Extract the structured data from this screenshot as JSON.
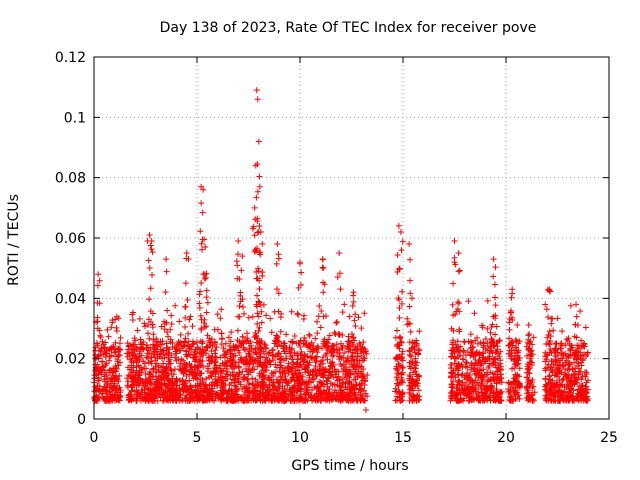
{
  "chart_data": {
    "type": "scatter",
    "title": "Day 138 of 2023, Rate Of TEC Index for receiver pove",
    "xlabel": "GPS time / hours",
    "ylabel": "ROTI / TECUs",
    "xlim": [
      0,
      25
    ],
    "ylim": [
      0,
      0.12
    ],
    "x_ticks": [
      "0",
      "5",
      "10",
      "15",
      "20",
      "25"
    ],
    "y_ticks": [
      "0",
      "0.02",
      "0.04",
      "0.06",
      "0.08",
      "0.1",
      "0.12"
    ],
    "grid": true,
    "marker": "+",
    "color": "#ff0000",
    "baseline_segments": [
      [
        0.0,
        1.3
      ],
      [
        1.6,
        13.2
      ],
      [
        14.6,
        15.0
      ],
      [
        15.3,
        15.8
      ],
      [
        17.3,
        19.8
      ],
      [
        20.1,
        20.7
      ],
      [
        21.0,
        21.4
      ],
      [
        21.9,
        24.0
      ]
    ],
    "peaks": [
      {
        "x": 0.2,
        "y": 0.048
      },
      {
        "x": 2.7,
        "y": 0.061
      },
      {
        "x": 2.8,
        "y": 0.059
      },
      {
        "x": 3.5,
        "y": 0.053
      },
      {
        "x": 4.5,
        "y": 0.055
      },
      {
        "x": 5.2,
        "y": 0.077
      },
      {
        "x": 5.3,
        "y": 0.076
      },
      {
        "x": 5.4,
        "y": 0.057
      },
      {
        "x": 7.0,
        "y": 0.059
      },
      {
        "x": 7.2,
        "y": 0.054
      },
      {
        "x": 7.8,
        "y": 0.07
      },
      {
        "x": 7.9,
        "y": 0.109
      },
      {
        "x": 7.95,
        "y": 0.106
      },
      {
        "x": 8.0,
        "y": 0.092
      },
      {
        "x": 8.05,
        "y": 0.077
      },
      {
        "x": 8.1,
        "y": 0.062
      },
      {
        "x": 8.9,
        "y": 0.058
      },
      {
        "x": 10.0,
        "y": 0.052
      },
      {
        "x": 11.1,
        "y": 0.053
      },
      {
        "x": 11.9,
        "y": 0.055
      },
      {
        "x": 12.6,
        "y": 0.042
      },
      {
        "x": 13.2,
        "y": 0.003
      },
      {
        "x": 14.8,
        "y": 0.064
      },
      {
        "x": 14.9,
        "y": 0.062
      },
      {
        "x": 15.3,
        "y": 0.058
      },
      {
        "x": 17.5,
        "y": 0.059
      },
      {
        "x": 17.7,
        "y": 0.055
      },
      {
        "x": 19.4,
        "y": 0.053
      },
      {
        "x": 20.3,
        "y": 0.043
      },
      {
        "x": 22.1,
        "y": 0.043
      },
      {
        "x": 23.4,
        "y": 0.038
      }
    ]
  }
}
